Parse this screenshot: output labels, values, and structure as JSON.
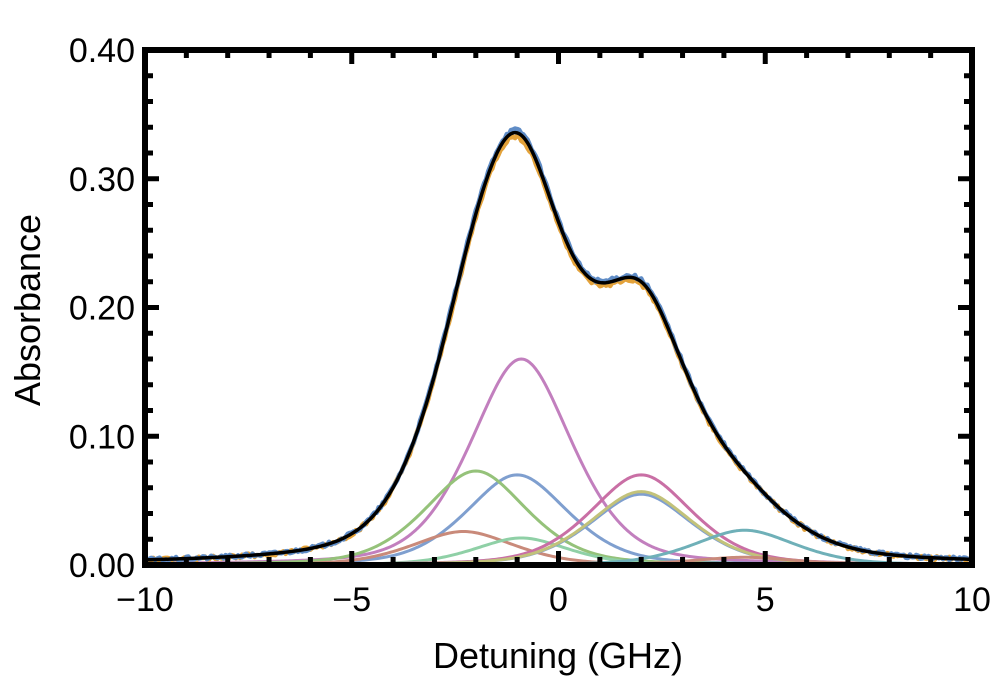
{
  "chart_data": {
    "type": "line",
    "title": "",
    "xlabel": "Detuning (GHz)",
    "ylabel": "Absorbance",
    "xlim": [
      -10,
      10
    ],
    "ylim": [
      0,
      0.4
    ],
    "xticks": [
      -10,
      -5,
      0,
      5,
      10
    ],
    "xtick_labels": [
      "−10",
      "−5",
      "0",
      "5",
      "10"
    ],
    "yticks": [
      0,
      0.1,
      0.2,
      0.3,
      0.4
    ],
    "ytick_labels": [
      "0.00",
      "0.10",
      "0.20",
      "0.30",
      "0.40"
    ],
    "grid": false,
    "legend": "none",
    "series": [
      {
        "color": "#c27fbe",
        "role": "component",
        "center": -0.9,
        "amplitude": 0.16,
        "width": 1.3
      },
      {
        "color": "#7f9fcf",
        "role": "component",
        "center": -1.0,
        "amplitude": 0.07,
        "width": 1.3
      },
      {
        "color": "#95c27a",
        "role": "component",
        "center": -2.0,
        "amplitude": 0.073,
        "width": 1.3
      },
      {
        "color": "#c98a7a",
        "role": "component",
        "center": -2.3,
        "amplitude": 0.026,
        "width": 1.3
      },
      {
        "color": "#8fd0a6",
        "role": "component",
        "center": -0.9,
        "amplitude": 0.021,
        "width": 1.2
      },
      {
        "color": "#c96fa5",
        "role": "component",
        "center": 2.0,
        "amplitude": 0.07,
        "width": 1.3
      },
      {
        "color": "#7f9fcf",
        "role": "component",
        "center": 2.0,
        "amplitude": 0.055,
        "width": 1.3
      },
      {
        "color": "#c2c27a",
        "role": "component",
        "center": 2.0,
        "amplitude": 0.057,
        "width": 1.3
      },
      {
        "color": "#6fb0b8",
        "role": "component",
        "center": 4.5,
        "amplitude": 0.027,
        "width": 1.3
      },
      {
        "color": "#c98a7a",
        "role": "component",
        "center": 4.5,
        "amplitude": 0.006,
        "width": 1.3
      },
      {
        "color": "#e3a23a",
        "role": "measured-noisy"
      },
      {
        "color": "#5f8cc6",
        "role": "measured-noisy"
      },
      {
        "color": "#000000",
        "role": "fit-total"
      }
    ]
  }
}
